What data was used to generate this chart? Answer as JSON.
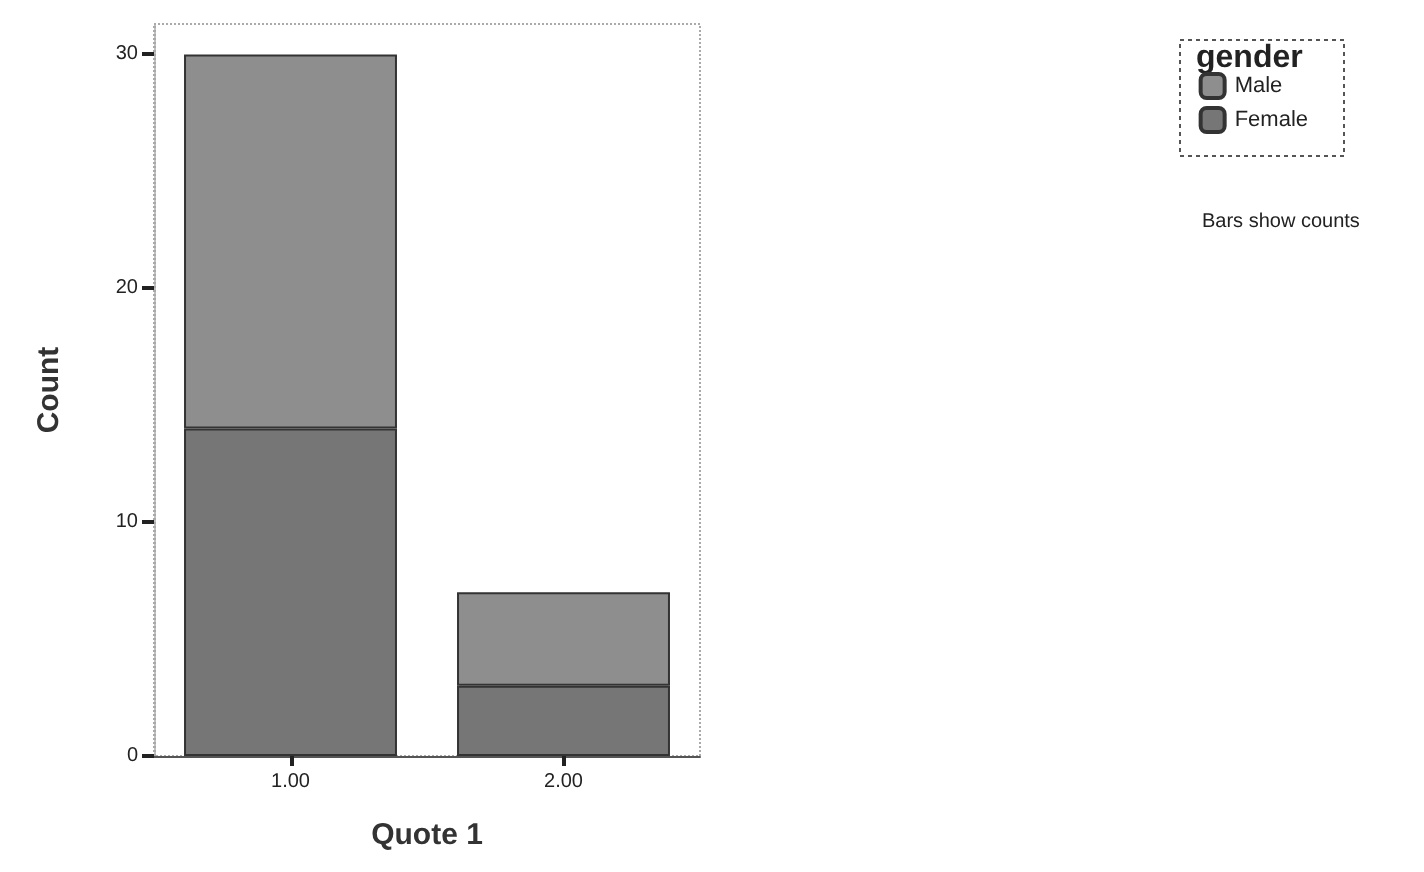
{
  "chart_data": {
    "type": "bar",
    "stacked": true,
    "xlabel": "Quote 1",
    "ylabel": "Count",
    "legend_title": "gender",
    "legend": "top right",
    "categories": [
      "1.00",
      "2.00"
    ],
    "series": [
      {
        "name": "Female",
        "color": "#767676",
        "values": [
          14,
          3
        ]
      },
      {
        "name": "Male",
        "color": "#8e8e8e",
        "values": [
          16,
          4
        ]
      }
    ],
    "ylim": [
      0,
      31.3
    ],
    "yticks": [
      0,
      10,
      20,
      30
    ],
    "grid": false,
    "annotations": [
      "Bars show counts"
    ]
  }
}
